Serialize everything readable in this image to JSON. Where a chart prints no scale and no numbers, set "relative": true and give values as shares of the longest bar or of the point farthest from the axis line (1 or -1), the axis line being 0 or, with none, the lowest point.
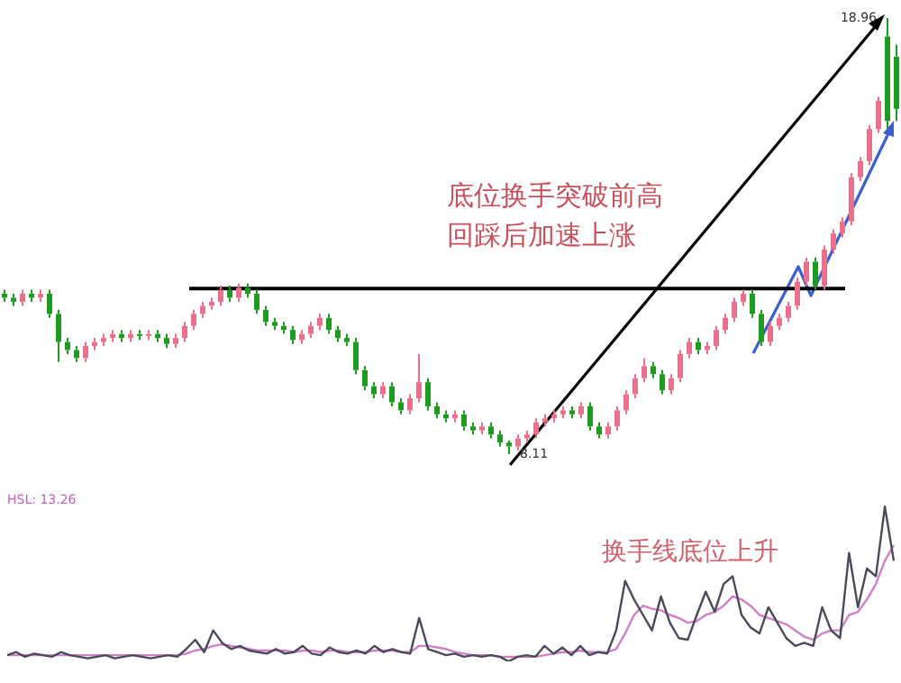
{
  "chart_data": [
    {
      "type": "candlestick",
      "categories": [
        null,
        null,
        null,
        null,
        null,
        null,
        null,
        null,
        null,
        null,
        null,
        null,
        null,
        null,
        null,
        null,
        null,
        null,
        null,
        null,
        null,
        null,
        null,
        null,
        null,
        null,
        null,
        null,
        null,
        null,
        null,
        null,
        null,
        null,
        null,
        null,
        null,
        null,
        null,
        null,
        null,
        null,
        null,
        null,
        null,
        null,
        null,
        null,
        null,
        null,
        null,
        null,
        null,
        null,
        null,
        null,
        null,
        null,
        null,
        null,
        null,
        null,
        null,
        null,
        null,
        null,
        null,
        null,
        null,
        null,
        null,
        null,
        null,
        null,
        null,
        null,
        null,
        null,
        null,
        null,
        null,
        null,
        null,
        null,
        null,
        null,
        null,
        null,
        null,
        null,
        null,
        null,
        null,
        null,
        null,
        null,
        null,
        null,
        null,
        null
      ],
      "ohlc": [
        [
          12.1,
          12.2,
          11.9,
          12.0
        ],
        [
          12.0,
          12.1,
          11.8,
          11.9
        ],
        [
          11.9,
          12.2,
          11.8,
          12.1
        ],
        [
          12.1,
          12.2,
          11.9,
          12.0
        ],
        [
          12.0,
          12.2,
          11.9,
          12.1
        ],
        [
          12.1,
          12.2,
          11.5,
          11.6
        ],
        [
          11.6,
          11.7,
          10.4,
          10.9
        ],
        [
          10.9,
          11.0,
          10.6,
          10.7
        ],
        [
          10.7,
          10.8,
          10.4,
          10.5
        ],
        [
          10.5,
          10.9,
          10.4,
          10.8
        ],
        [
          10.8,
          11.0,
          10.7,
          10.9
        ],
        [
          10.9,
          11.1,
          10.8,
          11.0
        ],
        [
          11.0,
          11.2,
          10.9,
          11.1
        ],
        [
          11.1,
          11.2,
          10.9,
          11.0
        ],
        [
          11.0,
          11.2,
          10.9,
          11.1
        ],
        [
          11.1,
          11.2,
          10.95,
          11.05
        ],
        [
          11.05,
          11.2,
          10.95,
          11.1
        ],
        [
          11.1,
          11.2,
          10.9,
          11.0
        ],
        [
          11.0,
          11.1,
          10.75,
          10.85
        ],
        [
          10.85,
          11.1,
          10.75,
          11.0
        ],
        [
          11.0,
          11.4,
          10.9,
          11.3
        ],
        [
          11.3,
          11.7,
          11.2,
          11.6
        ],
        [
          11.6,
          11.9,
          11.5,
          11.8
        ],
        [
          11.8,
          12.0,
          11.7,
          11.9
        ],
        [
          11.9,
          12.3,
          11.8,
          12.2
        ],
        [
          12.2,
          12.3,
          11.9,
          12.0
        ],
        [
          12.0,
          12.35,
          11.9,
          12.25
        ],
        [
          12.25,
          12.35,
          12.0,
          12.1
        ],
        [
          12.1,
          12.2,
          11.6,
          11.7
        ],
        [
          11.7,
          11.8,
          11.3,
          11.4
        ],
        [
          11.4,
          11.5,
          11.2,
          11.3
        ],
        [
          11.3,
          11.4,
          11.1,
          11.2
        ],
        [
          11.2,
          11.3,
          10.85,
          10.95
        ],
        [
          10.95,
          11.2,
          10.85,
          11.1
        ],
        [
          11.1,
          11.4,
          11.0,
          11.3
        ],
        [
          11.3,
          11.6,
          11.2,
          11.5
        ],
        [
          11.5,
          11.6,
          11.1,
          11.2
        ],
        [
          11.2,
          11.3,
          10.9,
          11.0
        ],
        [
          11.0,
          11.1,
          10.8,
          10.9
        ],
        [
          10.9,
          11.0,
          10.1,
          10.2
        ],
        [
          10.2,
          10.3,
          9.7,
          9.8
        ],
        [
          9.8,
          9.9,
          9.5,
          9.6
        ],
        [
          9.6,
          9.9,
          9.5,
          9.8
        ],
        [
          9.8,
          9.9,
          9.3,
          9.4
        ],
        [
          9.4,
          9.5,
          9.1,
          9.2
        ],
        [
          9.2,
          9.6,
          9.1,
          9.5
        ],
        [
          9.5,
          10.6,
          9.4,
          9.9
        ],
        [
          9.9,
          10.0,
          9.2,
          9.3
        ],
        [
          9.3,
          9.4,
          9.0,
          9.1
        ],
        [
          9.1,
          9.2,
          8.9,
          9.0
        ],
        [
          9.0,
          9.2,
          8.9,
          9.1
        ],
        [
          9.1,
          9.2,
          8.7,
          8.8
        ],
        [
          8.8,
          8.9,
          8.6,
          8.7
        ],
        [
          8.7,
          8.9,
          8.6,
          8.8
        ],
        [
          8.8,
          8.9,
          8.5,
          8.6
        ],
        [
          8.6,
          8.7,
          8.3,
          8.4
        ],
        [
          8.4,
          8.45,
          8.11,
          8.3
        ],
        [
          8.3,
          8.6,
          8.2,
          8.5
        ],
        [
          8.5,
          8.7,
          8.4,
          8.6
        ],
        [
          8.6,
          9.0,
          8.5,
          8.9
        ],
        [
          8.9,
          9.1,
          8.8,
          9.0
        ],
        [
          9.0,
          9.2,
          8.9,
          9.1
        ],
        [
          9.1,
          9.3,
          9.0,
          9.2
        ],
        [
          9.2,
          9.3,
          9.0,
          9.1
        ],
        [
          9.1,
          9.4,
          9.0,
          9.3
        ],
        [
          9.3,
          9.4,
          8.7,
          8.8
        ],
        [
          8.8,
          8.9,
          8.5,
          8.6
        ],
        [
          8.6,
          8.9,
          8.5,
          8.8
        ],
        [
          8.8,
          9.3,
          8.7,
          9.2
        ],
        [
          9.2,
          9.7,
          9.1,
          9.6
        ],
        [
          9.6,
          10.1,
          9.5,
          10.0
        ],
        [
          10.0,
          10.5,
          9.9,
          10.3
        ],
        [
          10.3,
          10.4,
          10.0,
          10.1
        ],
        [
          10.1,
          10.2,
          9.6,
          9.7
        ],
        [
          9.7,
          10.1,
          9.6,
          10.0
        ],
        [
          10.0,
          10.7,
          9.9,
          10.6
        ],
        [
          10.6,
          11.0,
          10.5,
          10.9
        ],
        [
          10.9,
          11.0,
          10.6,
          10.7
        ],
        [
          10.7,
          10.9,
          10.6,
          10.8
        ],
        [
          10.8,
          11.3,
          10.7,
          11.2
        ],
        [
          11.2,
          11.6,
          11.1,
          11.5
        ],
        [
          11.5,
          12.0,
          11.4,
          11.9
        ],
        [
          11.9,
          12.2,
          11.8,
          12.1
        ],
        [
          12.1,
          12.2,
          11.5,
          11.6
        ],
        [
          11.6,
          11.7,
          10.8,
          10.9
        ],
        [
          10.9,
          11.4,
          10.8,
          11.3
        ],
        [
          11.3,
          11.6,
          11.2,
          11.5
        ],
        [
          11.5,
          11.9,
          11.4,
          11.8
        ],
        [
          11.8,
          12.5,
          11.7,
          12.4
        ],
        [
          12.4,
          13.0,
          12.3,
          12.9
        ],
        [
          12.9,
          13.0,
          12.2,
          12.3
        ],
        [
          12.3,
          13.3,
          12.2,
          13.2
        ],
        [
          13.2,
          13.7,
          13.1,
          13.6
        ],
        [
          13.6,
          14.0,
          13.5,
          13.9
        ],
        [
          13.9,
          15.1,
          13.8,
          15.0
        ],
        [
          15.0,
          15.5,
          14.9,
          15.4
        ],
        [
          15.4,
          16.3,
          15.3,
          16.2
        ],
        [
          16.2,
          17.0,
          16.1,
          16.9
        ],
        [
          18.5,
          18.96,
          16.2,
          16.4
        ],
        [
          18.0,
          18.3,
          16.4,
          16.7
        ]
      ],
      "colors": [
        "#1e9a1e",
        "#1e9a1e",
        "#e8708a",
        "#1e9a1e",
        "#e8708a",
        "#1e9a1e",
        "#1e9a1e",
        "#1e9a1e",
        "#1e9a1e",
        "#e8708a",
        "#e8708a",
        "#e8708a",
        "#e8708a",
        "#1e9a1e",
        "#e8708a",
        "#1e9a1e",
        "#e8708a",
        "#1e9a1e",
        "#1e9a1e",
        "#e8708a",
        "#e8708a",
        "#e8708a",
        "#e8708a",
        "#e8708a",
        "#e8708a",
        "#1e9a1e",
        "#e8708a",
        "#1e9a1e",
        "#1e9a1e",
        "#1e9a1e",
        "#1e9a1e",
        "#1e9a1e",
        "#1e9a1e",
        "#e8708a",
        "#e8708a",
        "#e8708a",
        "#1e9a1e",
        "#1e9a1e",
        "#1e9a1e",
        "#1e9a1e",
        "#1e9a1e",
        "#1e9a1e",
        "#e8708a",
        "#1e9a1e",
        "#1e9a1e",
        "#e8708a",
        "#e8708a",
        "#1e9a1e",
        "#1e9a1e",
        "#1e9a1e",
        "#e8708a",
        "#1e9a1e",
        "#1e9a1e",
        "#e8708a",
        "#1e9a1e",
        "#1e9a1e",
        "#1e9a1e",
        "#e8708a",
        "#e8708a",
        "#e8708a",
        "#e8708a",
        "#e8708a",
        "#e8708a",
        "#1e9a1e",
        "#e8708a",
        "#1e9a1e",
        "#1e9a1e",
        "#e8708a",
        "#e8708a",
        "#e8708a",
        "#e8708a",
        "#e8708a",
        "#1e9a1e",
        "#1e9a1e",
        "#e8708a",
        "#e8708a",
        "#e8708a",
        "#1e9a1e",
        "#e8708a",
        "#e8708a",
        "#e8708a",
        "#e8708a",
        "#e8708a",
        "#1e9a1e",
        "#1e9a1e",
        "#e8708a",
        "#e8708a",
        "#e8708a",
        "#e8708a",
        "#e8708a",
        "#1e9a1e",
        "#e8708a",
        "#e8708a",
        "#e8708a",
        "#e8708a",
        "#e8708a",
        "#e8708a",
        "#e8708a",
        "#1e9a1e",
        "#1e9a1e"
      ],
      "legend": false,
      "ref_lines": [
        {
          "axis": "y",
          "value": 12.23,
          "color": "#000000"
        }
      ],
      "annotations": [
        "底位换手突破前高",
        "回踩后加速上涨",
        "18.96",
        "8.11"
      ]
    },
    {
      "type": "line",
      "relative": true,
      "categories": [
        null,
        null,
        null,
        null,
        null,
        null,
        null,
        null,
        null,
        null,
        null,
        null,
        null,
        null,
        null,
        null,
        null,
        null,
        null,
        null,
        null,
        null,
        null,
        null,
        null,
        null,
        null,
        null,
        null,
        null,
        null,
        null,
        null,
        null,
        null,
        null,
        null,
        null,
        null,
        null,
        null,
        null,
        null,
        null,
        null,
        null,
        null,
        null,
        null,
        null,
        null,
        null,
        null,
        null,
        null,
        null,
        null,
        null,
        null,
        null,
        null,
        null,
        null,
        null,
        null,
        null,
        null,
        null,
        null,
        null,
        null,
        null,
        null,
        null,
        null,
        null,
        null,
        null,
        null,
        null,
        null,
        null,
        null,
        null,
        null,
        null,
        null,
        null,
        null,
        null,
        null,
        null,
        null,
        null,
        null,
        null,
        null,
        null,
        null,
        null
      ],
      "series": [
        {
          "color": "#4a4a5a",
          "values": [
            0.04,
            0.06,
            0.03,
            0.05,
            0.04,
            0.03,
            0.06,
            0.04,
            0.03,
            0.02,
            0.03,
            0.04,
            0.02,
            0.03,
            0.04,
            0.03,
            0.02,
            0.03,
            0.04,
            0.03,
            0.08,
            0.14,
            0.06,
            0.2,
            0.12,
            0.08,
            0.1,
            0.07,
            0.06,
            0.05,
            0.08,
            0.05,
            0.06,
            0.1,
            0.05,
            0.04,
            0.09,
            0.06,
            0.05,
            0.07,
            0.05,
            0.1,
            0.06,
            0.08,
            0.06,
            0.05,
            0.28,
            0.08,
            0.06,
            0.04,
            0.05,
            0.03,
            0.04,
            0.03,
            0.04,
            0.03,
            0,
            0.03,
            0.04,
            0.03,
            0.1,
            0.05,
            0.09,
            0.04,
            0.1,
            0.04,
            0.06,
            0.05,
            0.2,
            0.52,
            0.4,
            0.3,
            0.2,
            0.42,
            0.25,
            0.15,
            0.14,
            0.3,
            0.45,
            0.32,
            0.5,
            0.55,
            0.3,
            0.22,
            0.18,
            0.35,
            0.25,
            0.15,
            0.1,
            0.12,
            0.1,
            0.35,
            0.2,
            0.15,
            0.7,
            0.35,
            0.6,
            0.55,
            1.0,
            0.65
          ]
        },
        {
          "color": "#d080c8",
          "values": [
            0.04,
            0.04,
            0.04,
            0.04,
            0.04,
            0.04,
            0.04,
            0.04,
            0.04,
            0.04,
            0.04,
            0.04,
            0.04,
            0.04,
            0.04,
            0.04,
            0.04,
            0.04,
            0.04,
            0.04,
            0.05,
            0.07,
            0.08,
            0.1,
            0.11,
            0.1,
            0.09,
            0.08,
            0.07,
            0.07,
            0.07,
            0.07,
            0.06,
            0.07,
            0.07,
            0.06,
            0.07,
            0.07,
            0.06,
            0.06,
            0.06,
            0.07,
            0.07,
            0.07,
            0.06,
            0.06,
            0.1,
            0.1,
            0.09,
            0.08,
            0.06,
            0.05,
            0.04,
            0.04,
            0.04,
            0.03,
            0.03,
            0.03,
            0.03,
            0.03,
            0.04,
            0.05,
            0.06,
            0.06,
            0.07,
            0.06,
            0.06,
            0.06,
            0.08,
            0.18,
            0.3,
            0.36,
            0.34,
            0.33,
            0.3,
            0.28,
            0.25,
            0.26,
            0.3,
            0.32,
            0.36,
            0.42,
            0.4,
            0.36,
            0.3,
            0.28,
            0.26,
            0.24,
            0.2,
            0.16,
            0.14,
            0.18,
            0.2,
            0.2,
            0.3,
            0.32,
            0.4,
            0.5,
            0.65,
            0.75
          ]
        }
      ],
      "legend": false,
      "annotations": [
        "换手线底位上升",
        "HSL: 13.26"
      ]
    }
  ]
}
